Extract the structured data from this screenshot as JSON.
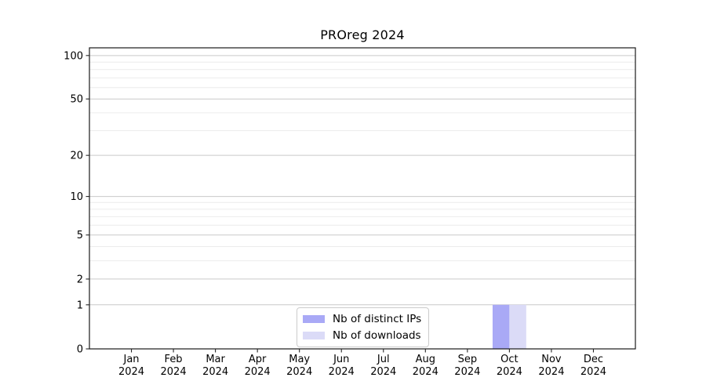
{
  "chart_data": {
    "type": "bar",
    "title": "PROreg 2024",
    "categories": [
      "Jan",
      "Feb",
      "Mar",
      "Apr",
      "May",
      "Jun",
      "Jul",
      "Aug",
      "Sep",
      "Oct",
      "Nov",
      "Dec"
    ],
    "category_year": "2024",
    "series": [
      {
        "name": "Nb of distinct IPs",
        "color": "#a9a9f6",
        "values": [
          0,
          0,
          0,
          0,
          0,
          0,
          0,
          0,
          0,
          1,
          0,
          0
        ]
      },
      {
        "name": "Nb of downloads",
        "color": "#dbdbf7",
        "values": [
          0,
          0,
          0,
          0,
          0,
          0,
          0,
          0,
          0,
          1,
          0,
          0
        ]
      }
    ],
    "bar_width": 0.4,
    "yscale": "log1p",
    "ylim": [
      0,
      113
    ],
    "xlim": [
      -1,
      12
    ],
    "yticks_major": [
      0,
      1,
      2,
      5,
      10,
      20,
      50,
      100
    ],
    "yticks_minor_grid": [
      3,
      4,
      6,
      7,
      8,
      9,
      30,
      40,
      60,
      70,
      80,
      90
    ],
    "grid": "horizontal-major-and-minor",
    "legend_position": "lower center",
    "colors": {
      "grid_major": "#c9c9c9",
      "grid_minor": "#ececec",
      "spine": "#1a1a1a",
      "tick": "#262626",
      "text": "#000000",
      "background": "#ffffff"
    }
  }
}
